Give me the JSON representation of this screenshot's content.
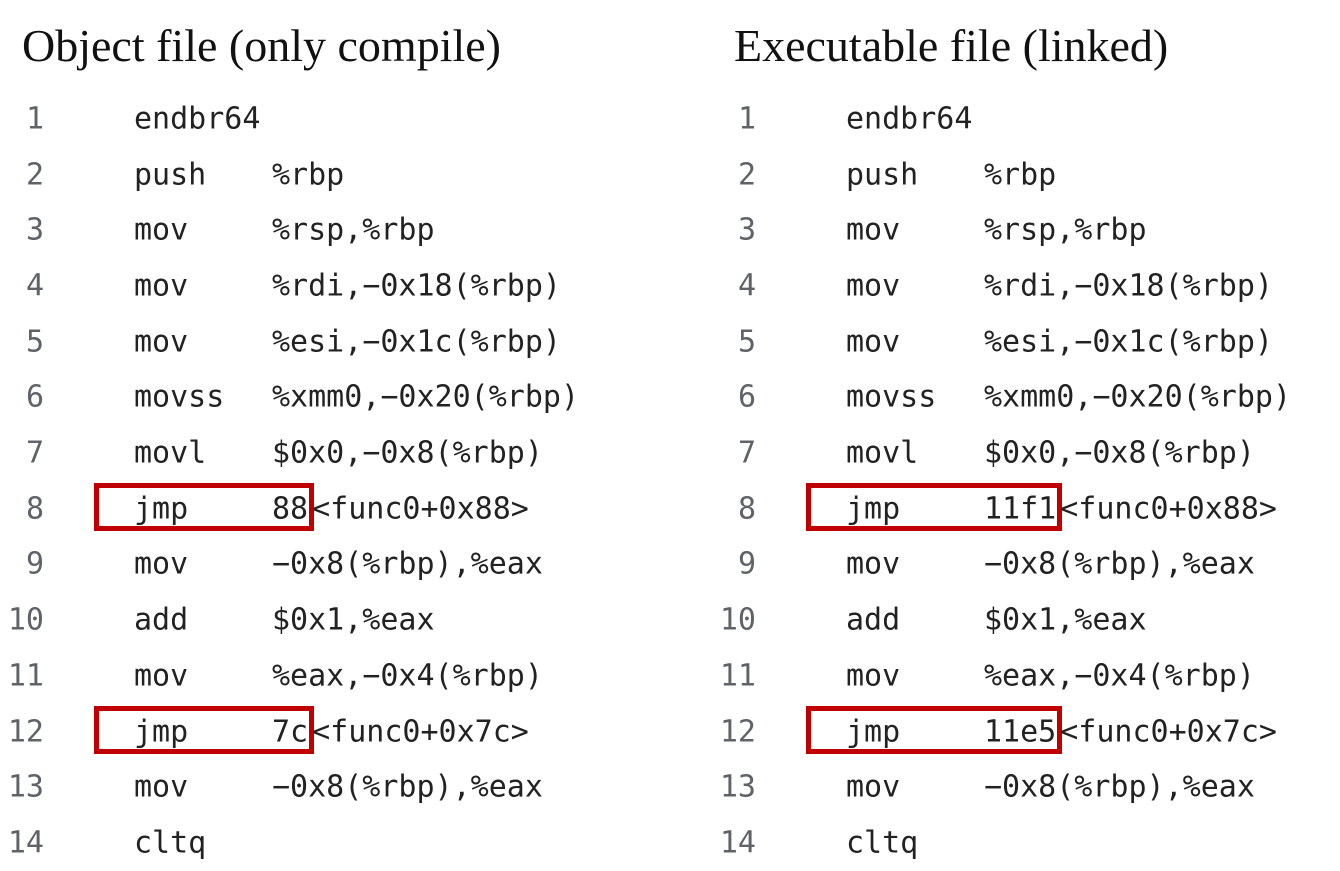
{
  "left": {
    "title": "Object file (only compile)",
    "lines": [
      {
        "no": "1",
        "op": "endbr64",
        "args": ""
      },
      {
        "no": "2",
        "op": "push",
        "args": "%rbp"
      },
      {
        "no": "3",
        "op": "mov",
        "args": "%rsp,%rbp"
      },
      {
        "no": "4",
        "op": "mov",
        "args": "%rdi,−0x18(%rbp)"
      },
      {
        "no": "5",
        "op": "mov",
        "args": "%esi,−0x1c(%rbp)"
      },
      {
        "no": "6",
        "op": "movss",
        "args": "%xmm0,−0x20(%rbp)"
      },
      {
        "no": "7",
        "op": "movl",
        "args": "$0x0,−0x8(%rbp)"
      },
      {
        "no": "8",
        "op": "jmp",
        "args": "88",
        "sym": "<func0+0x88>",
        "highlight": true
      },
      {
        "no": "9",
        "op": "mov",
        "args": "−0x8(%rbp),%eax"
      },
      {
        "no": "10",
        "op": "add",
        "args": "$0x1,%eax"
      },
      {
        "no": "11",
        "op": "mov",
        "args": "%eax,−0x4(%rbp)"
      },
      {
        "no": "12",
        "op": "jmp",
        "args": "7c",
        "sym": "<func0+0x7c>",
        "highlight": true
      },
      {
        "no": "13",
        "op": "mov",
        "args": "−0x8(%rbp),%eax"
      },
      {
        "no": "14",
        "op": "cltq",
        "args": ""
      }
    ]
  },
  "right": {
    "title": "Executable file (linked)",
    "lines": [
      {
        "no": "1",
        "op": "endbr64",
        "args": ""
      },
      {
        "no": "2",
        "op": "push",
        "args": "%rbp"
      },
      {
        "no": "3",
        "op": "mov",
        "args": "%rsp,%rbp"
      },
      {
        "no": "4",
        "op": "mov",
        "args": "%rdi,−0x18(%rbp)"
      },
      {
        "no": "5",
        "op": "mov",
        "args": "%esi,−0x1c(%rbp)"
      },
      {
        "no": "6",
        "op": "movss",
        "args": "%xmm0,−0x20(%rbp)"
      },
      {
        "no": "7",
        "op": "movl",
        "args": "$0x0,−0x8(%rbp)"
      },
      {
        "no": "8",
        "op": "jmp",
        "args": "11f1",
        "sym": "<func0+0x88>",
        "highlight": true
      },
      {
        "no": "9",
        "op": "mov",
        "args": "−0x8(%rbp),%eax"
      },
      {
        "no": "10",
        "op": "add",
        "args": "$0x1,%eax"
      },
      {
        "no": "11",
        "op": "mov",
        "args": "%eax,−0x4(%rbp)"
      },
      {
        "no": "12",
        "op": "jmp",
        "args": "11e5",
        "sym": "<func0+0x7c>",
        "highlight": true
      },
      {
        "no": "13",
        "op": "mov",
        "args": "−0x8(%rbp),%eax"
      },
      {
        "no": "14",
        "op": "cltq",
        "args": ""
      }
    ]
  },
  "colors": {
    "highlight_border": "#c00000",
    "line_number": "#5f6368",
    "code_text": "#222222"
  }
}
